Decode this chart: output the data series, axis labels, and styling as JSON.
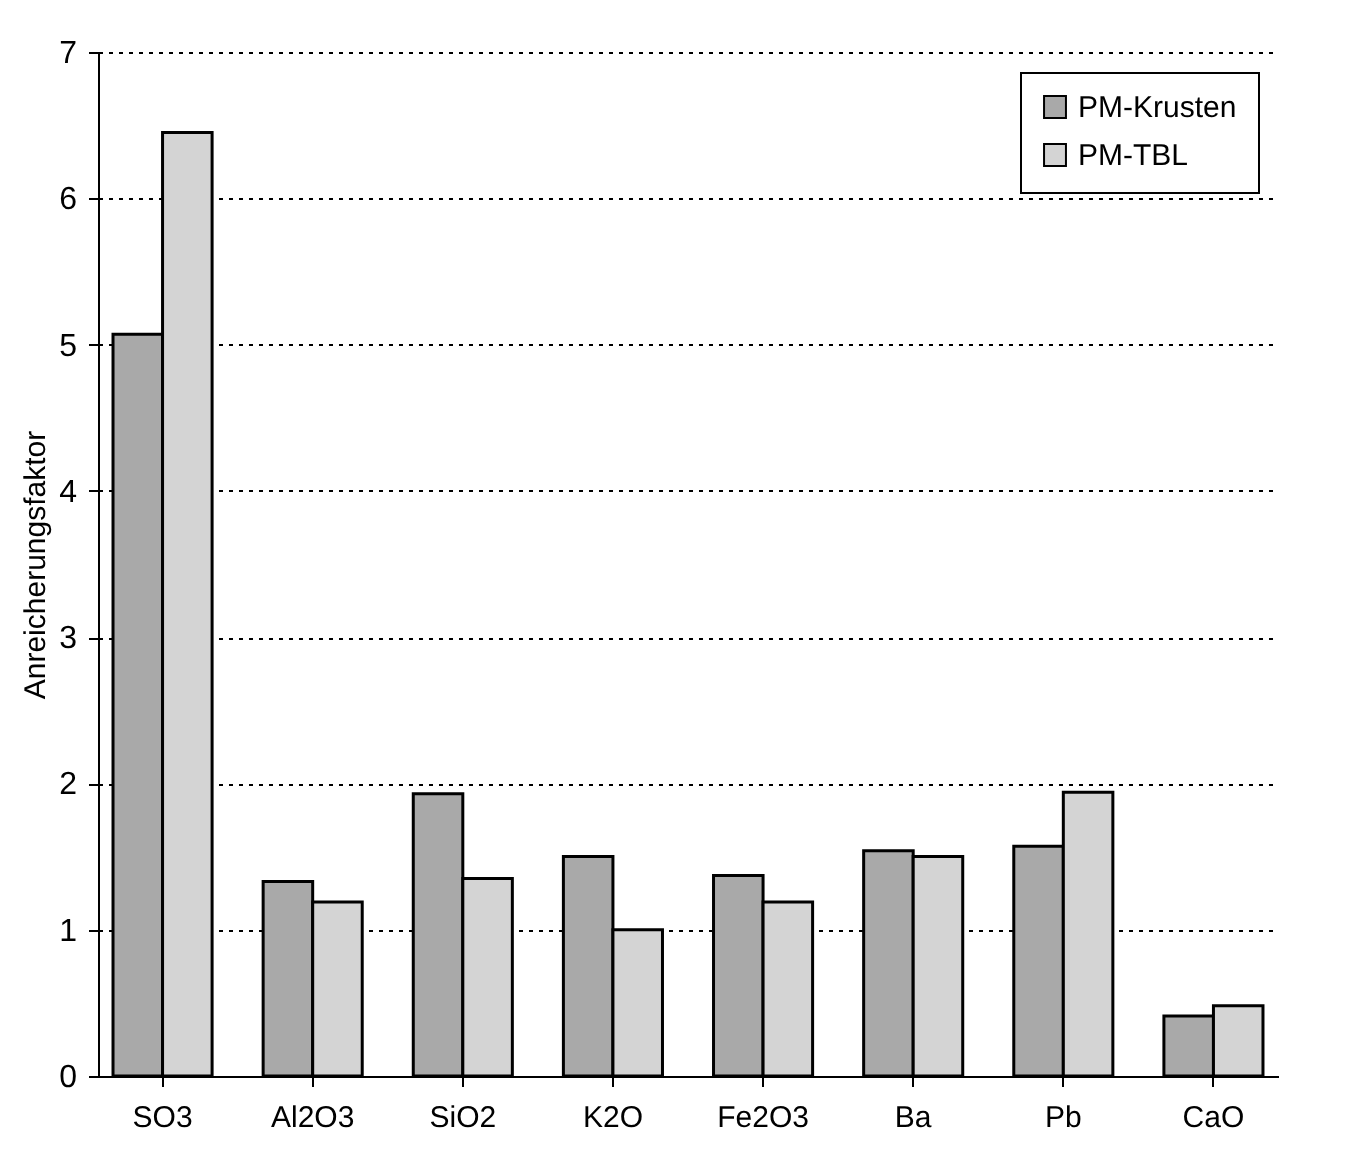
{
  "chart_data": {
    "type": "bar",
    "ylabel": "Anreicherungsfaktor",
    "categories": [
      "SO3",
      "Al2O3",
      "SiO2",
      "K2O",
      "Fe2O3",
      "Ba",
      "Pb",
      "CaO"
    ],
    "series": [
      {
        "name": "PM-Krusten",
        "color": "#a9a9a9",
        "values": [
          5.07,
          1.33,
          1.93,
          1.5,
          1.37,
          1.54,
          1.57,
          0.41
        ]
      },
      {
        "name": "PM-TBL",
        "color": "#d4d4d4",
        "values": [
          6.45,
          1.19,
          1.35,
          1.0,
          1.19,
          1.5,
          1.94,
          0.48
        ]
      }
    ],
    "ylim": [
      0,
      7
    ],
    "yticks": [
      0,
      1,
      2,
      3,
      4,
      5,
      6,
      7
    ],
    "grid": "y",
    "legend": "top right"
  }
}
